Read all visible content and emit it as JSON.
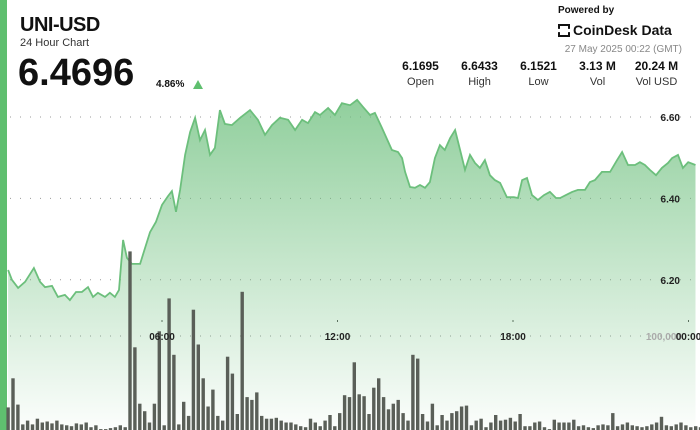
{
  "header": {
    "symbol": "UNI-USD",
    "subtitle": "24 Hour Chart",
    "price": "6.4696",
    "change": "4.86%",
    "change_direction": "up",
    "powered_by": "Powered by",
    "brand": "CoinDesk Data",
    "timestamp": "27 May 2025 00:22 (GMT)"
  },
  "stats": [
    {
      "value": "6.1695",
      "label": "Open"
    },
    {
      "value": "6.6433",
      "label": "High"
    },
    {
      "value": "6.1521",
      "label": "Low"
    },
    {
      "value": "3.13 M",
      "label": "Vol"
    },
    {
      "value": "20.24 M",
      "label": "Vol USD"
    }
  ],
  "colors": {
    "accent": "#5fbf6f",
    "line": "#6cbf7c",
    "volume": "#5a5f58"
  },
  "chart_data": {
    "type": "area",
    "x_ticks": [
      "06:00",
      "12:00",
      "18:00",
      "00:00"
    ],
    "x_tick_hours": [
      6,
      12,
      18,
      24
    ],
    "y_ticks": [
      "6.60",
      "6.40",
      "6.20"
    ],
    "y_tick_values": [
      6.6,
      6.4,
      6.2
    ],
    "ylim": [
      6.0,
      6.65
    ],
    "volume_tick": "100,000",
    "volume_tick_value": 100000,
    "grid": true,
    "price": {
      "hours": [
        0.74,
        0.87,
        1.08,
        1.32,
        1.62,
        1.83,
        2.0,
        2.24,
        2.44,
        2.68,
        2.85,
        3.06,
        3.26,
        3.47,
        3.64,
        3.81,
        4.05,
        4.22,
        4.39,
        4.53,
        4.67,
        4.8,
        4.97,
        5.25,
        5.42,
        5.59,
        5.79,
        6.0,
        6.21,
        6.34,
        6.48,
        6.62,
        6.79,
        6.96,
        7.13,
        7.3,
        7.47,
        7.64,
        7.81,
        7.98,
        8.15,
        8.39,
        8.67,
        9.01,
        9.28,
        9.52,
        9.76,
        10.03,
        10.31,
        10.55,
        10.79,
        10.99,
        11.23,
        11.4,
        11.68,
        11.91,
        12.15,
        12.43,
        12.67,
        12.87,
        13.11,
        13.28,
        13.52,
        13.86,
        14.07,
        14.21,
        14.31,
        14.48,
        14.65,
        14.82,
        14.99,
        15.16,
        15.33,
        15.5,
        15.67,
        15.85,
        16.02,
        16.19,
        16.36,
        16.53,
        16.7,
        16.87,
        17.04,
        17.21,
        17.38,
        17.56,
        17.79,
        18.03,
        18.17,
        18.31,
        18.48,
        18.65,
        18.85,
        19.06,
        19.26,
        19.47,
        19.61,
        19.81,
        20.02,
        20.22,
        20.46,
        20.63,
        20.8,
        21.04,
        21.32,
        21.56,
        21.73,
        21.93,
        22.17,
        22.34,
        22.51,
        22.68,
        22.89,
        23.09,
        23.3,
        23.44,
        23.64,
        23.81,
        23.99,
        24.24
      ],
      "values": [
        6.224,
        6.2,
        6.18,
        6.195,
        6.229,
        6.195,
        6.182,
        6.185,
        6.158,
        6.163,
        6.15,
        6.17,
        6.17,
        6.182,
        6.158,
        6.168,
        6.158,
        6.168,
        6.158,
        6.175,
        6.298,
        6.254,
        6.239,
        6.239,
        6.278,
        6.317,
        6.342,
        6.384,
        6.406,
        6.418,
        6.367,
        6.421,
        6.507,
        6.563,
        6.598,
        6.543,
        6.568,
        6.507,
        6.524,
        6.617,
        6.583,
        6.58,
        6.598,
        6.617,
        6.593,
        6.556,
        6.58,
        6.598,
        6.593,
        6.568,
        6.593,
        6.585,
        6.612,
        6.605,
        6.622,
        6.605,
        6.634,
        6.629,
        6.642,
        6.625,
        6.605,
        6.61,
        6.573,
        6.519,
        6.514,
        6.499,
        6.465,
        6.428,
        6.426,
        6.433,
        6.426,
        6.44,
        6.499,
        6.531,
        6.519,
        6.548,
        6.568,
        6.519,
        6.47,
        6.507,
        6.487,
        6.475,
        6.494,
        6.457,
        6.445,
        6.438,
        6.403,
        6.403,
        6.401,
        6.445,
        6.45,
        6.408,
        6.396,
        6.408,
        6.416,
        6.401,
        6.401,
        6.408,
        6.416,
        6.421,
        6.421,
        6.44,
        6.445,
        6.465,
        6.465,
        6.494,
        6.514,
        6.482,
        6.482,
        6.489,
        6.482,
        6.47,
        6.457,
        6.475,
        6.487,
        6.499,
        6.507,
        6.475,
        6.489,
        6.482
      ]
    },
    "volume": {
      "start_hour": 0.74,
      "interval_hours": 0.1667,
      "values": [
        24000,
        55000,
        27000,
        6000,
        10000,
        6000,
        12000,
        8000,
        9000,
        7000,
        10000,
        6000,
        5000,
        4000,
        7000,
        6000,
        8000,
        3000,
        5000,
        1000,
        1000,
        2000,
        3000,
        5000,
        3000,
        190000,
        88000,
        28000,
        20000,
        8000,
        28000,
        105000,
        5000,
        140000,
        80000,
        6000,
        30000,
        15000,
        128000,
        91000,
        55000,
        25000,
        43000,
        15000,
        10000,
        78000,
        60000,
        17000,
        147000,
        35000,
        32000,
        40000,
        15000,
        12000,
        12000,
        13000,
        10000,
        8000,
        8000,
        6000,
        4000,
        3000,
        12000,
        8000,
        4000,
        10000,
        16000,
        4000,
        18000,
        37000,
        35000,
        72000,
        38000,
        36000,
        17000,
        45000,
        55000,
        35000,
        22000,
        28000,
        32000,
        18000,
        10000,
        80000,
        76000,
        17000,
        9000,
        28000,
        5000,
        16000,
        10000,
        18000,
        20000,
        25000,
        26000,
        5000,
        10000,
        12000,
        3000,
        8000,
        16000,
        10000,
        11000,
        13000,
        9000,
        17000,
        4000,
        4000,
        8000,
        9000,
        3000,
        1000,
        11000,
        8000,
        8000,
        8000,
        11000,
        4000,
        5000,
        3000,
        2000,
        5000,
        6000,
        5000,
        18000,
        4000,
        6000,
        8000,
        5000,
        4000,
        3000,
        4000,
        6000,
        8000,
        14000,
        5000,
        4000,
        6000,
        8000,
        5000,
        3000,
        4000,
        3000,
        2000,
        38000,
        16000
      ]
    }
  }
}
